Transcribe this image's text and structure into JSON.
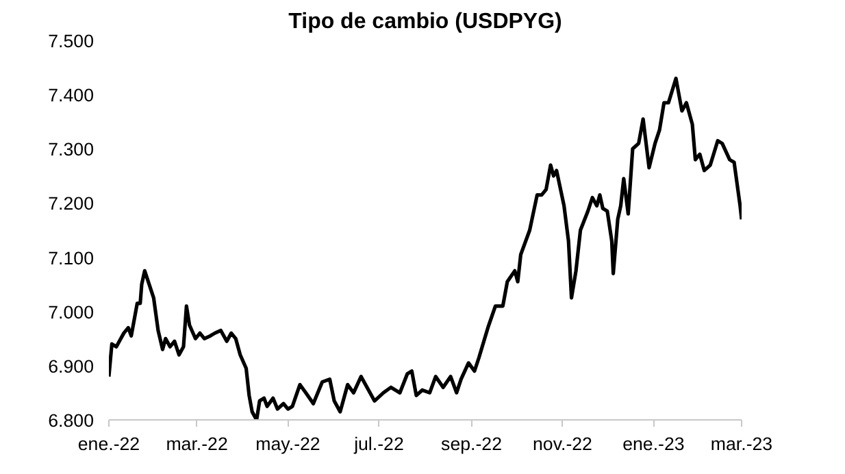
{
  "chart_data": {
    "type": "line",
    "title": "Tipo de cambio (USDPYG)",
    "x": [
      "2022-01-01",
      "2022-01-03",
      "2022-01-06",
      "2022-01-08",
      "2022-01-11",
      "2022-01-14",
      "2022-01-16",
      "2022-01-20",
      "2022-01-22",
      "2022-01-23",
      "2022-01-25",
      "2022-01-28",
      "2022-01-31",
      "2022-02-03",
      "2022-02-06",
      "2022-02-08",
      "2022-02-11",
      "2022-02-14",
      "2022-02-17",
      "2022-02-20",
      "2022-02-22",
      "2022-02-24",
      "2022-02-28",
      "2022-03-03",
      "2022-03-06",
      "2022-03-10",
      "2022-03-13",
      "2022-03-17",
      "2022-03-21",
      "2022-03-24",
      "2022-03-27",
      "2022-03-30",
      "2022-04-03",
      "2022-04-05",
      "2022-04-07",
      "2022-04-10",
      "2022-04-12",
      "2022-04-15",
      "2022-04-17",
      "2022-04-21",
      "2022-04-24",
      "2022-04-28",
      "2022-05-01",
      "2022-05-04",
      "2022-05-09",
      "2022-05-13",
      "2022-05-18",
      "2022-05-24",
      "2022-05-29",
      "2022-06-01",
      "2022-06-05",
      "2022-06-10",
      "2022-06-14",
      "2022-06-19",
      "2022-06-24",
      "2022-06-28",
      "2022-07-04",
      "2022-07-09",
      "2022-07-15",
      "2022-07-20",
      "2022-07-23",
      "2022-07-26",
      "2022-07-30",
      "2022-08-04",
      "2022-08-08",
      "2022-08-13",
      "2022-08-18",
      "2022-08-22",
      "2022-08-25",
      "2022-08-30",
      "2022-09-03",
      "2022-09-06",
      "2022-09-12",
      "2022-09-17",
      "2022-09-22",
      "2022-09-25",
      "2022-09-30",
      "2022-10-02",
      "2022-10-04",
      "2022-10-10",
      "2022-10-15",
      "2022-10-18",
      "2022-10-21",
      "2022-10-24",
      "2022-10-26",
      "2022-10-28",
      "2022-11-02",
      "2022-11-05",
      "2022-11-07",
      "2022-11-10",
      "2022-11-13",
      "2022-11-18",
      "2022-11-21",
      "2022-11-24",
      "2022-11-26",
      "2022-11-28",
      "2022-12-01",
      "2022-12-04",
      "2022-12-05",
      "2022-12-08",
      "2022-12-10",
      "2022-12-12",
      "2022-12-15",
      "2022-12-18",
      "2022-12-22",
      "2022-12-25",
      "2022-12-29",
      "2023-01-02",
      "2023-01-05",
      "2023-01-08",
      "2023-01-11",
      "2023-01-16",
      "2023-01-20",
      "2023-01-23",
      "2023-01-27",
      "2023-01-29",
      "2023-02-01",
      "2023-02-04",
      "2023-02-08",
      "2023-02-13",
      "2023-02-16",
      "2023-02-21",
      "2023-02-24",
      "2023-02-28",
      "2023-03-01"
    ],
    "series": [
      {
        "color": "#000000",
        "values": [
          6880,
          6940,
          6935,
          6945,
          6960,
          6970,
          6955,
          7015,
          7015,
          7050,
          7075,
          7050,
          7025,
          6965,
          6930,
          6950,
          6935,
          6945,
          6920,
          6935,
          7010,
          6975,
          6950,
          6960,
          6950,
          6955,
          6960,
          6965,
          6945,
          6960,
          6950,
          6920,
          6895,
          6845,
          6815,
          6800,
          6835,
          6840,
          6825,
          6840,
          6820,
          6830,
          6820,
          6825,
          6865,
          6850,
          6830,
          6870,
          6875,
          6835,
          6815,
          6865,
          6850,
          6880,
          6855,
          6835,
          6850,
          6860,
          6850,
          6885,
          6890,
          6845,
          6855,
          6850,
          6880,
          6860,
          6880,
          6850,
          6875,
          6905,
          6890,
          6915,
          6970,
          7010,
          7010,
          7055,
          7075,
          7055,
          7105,
          7150,
          7215,
          7215,
          7225,
          7270,
          7250,
          7260,
          7195,
          7130,
          7025,
          7075,
          7150,
          7185,
          7210,
          7195,
          7215,
          7190,
          7185,
          7130,
          7070,
          7170,
          7195,
          7245,
          7180,
          7300,
          7310,
          7355,
          7265,
          7310,
          7335,
          7385,
          7385,
          7430,
          7370,
          7385,
          7345,
          7280,
          7290,
          7260,
          7270,
          7315,
          7310,
          7280,
          7275,
          7195,
          7170
        ]
      }
    ],
    "xlim": [
      "2022-01-01",
      "2023-03-01"
    ],
    "xticks": [
      {
        "value": "2022-01-01",
        "label": "ene.-22"
      },
      {
        "value": "2022-03-01",
        "label": "mar.-22"
      },
      {
        "value": "2022-05-01",
        "label": "may.-22"
      },
      {
        "value": "2022-07-01",
        "label": "jul.-22"
      },
      {
        "value": "2022-09-01",
        "label": "sep.-22"
      },
      {
        "value": "2022-11-01",
        "label": "nov.-22"
      },
      {
        "value": "2023-01-01",
        "label": "ene.-23"
      },
      {
        "value": "2023-03-01",
        "label": "mar.-23"
      }
    ],
    "ylim": [
      6800,
      7500
    ],
    "yticks": [
      {
        "value": 6800,
        "label": "6.800"
      },
      {
        "value": 6900,
        "label": "6.900"
      },
      {
        "value": 7000,
        "label": "7.000"
      },
      {
        "value": 7100,
        "label": "7.100"
      },
      {
        "value": 7200,
        "label": "7.200"
      },
      {
        "value": 7300,
        "label": "7.300"
      },
      {
        "value": 7400,
        "label": "7.400"
      },
      {
        "value": 7500,
        "label": "7.500"
      }
    ],
    "grid": false,
    "marker": "none",
    "line_style": "solid"
  }
}
